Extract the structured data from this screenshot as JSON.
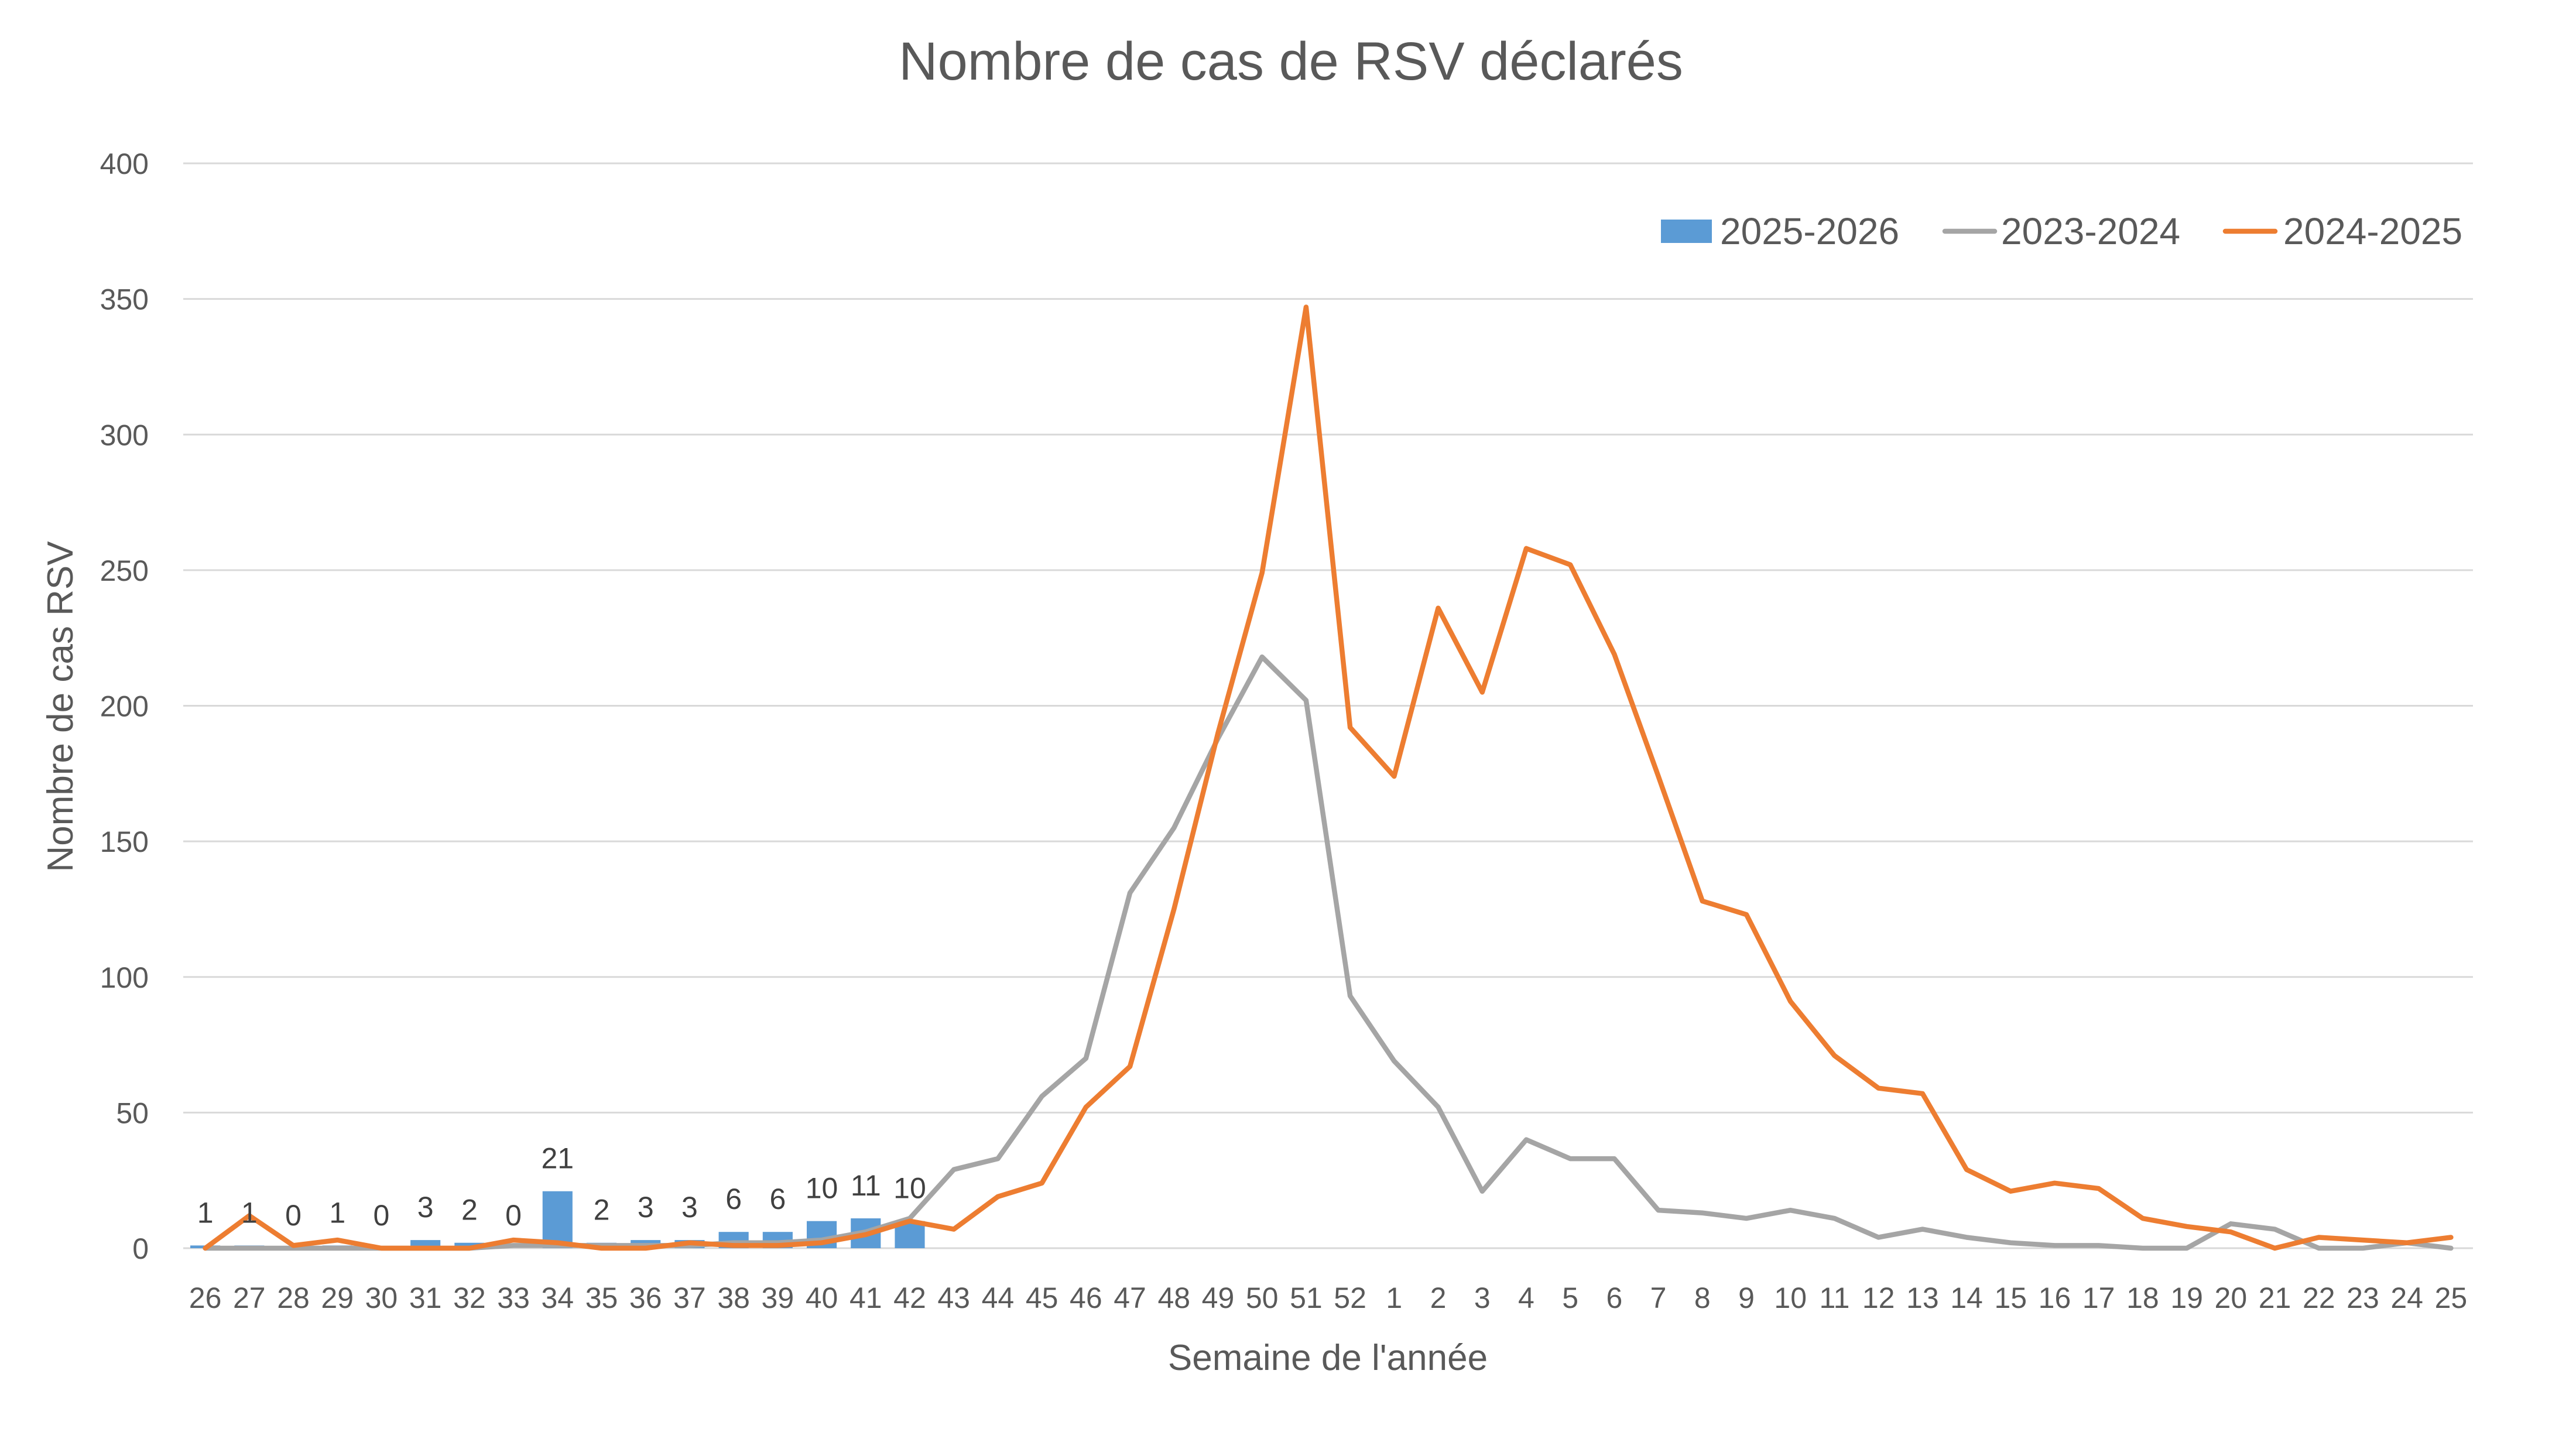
{
  "chart_data": {
    "type": "line",
    "title": "Nombre de cas de RSV déclarés",
    "xlabel": "Semaine de l'année",
    "ylabel": "Nombre de cas RSV",
    "ylim": [
      0,
      400
    ],
    "yticks": [
      0,
      50,
      100,
      150,
      200,
      250,
      300,
      350,
      400
    ],
    "grid": true,
    "legend": "top-right",
    "categories": [
      "26",
      "27",
      "28",
      "29",
      "30",
      "31",
      "32",
      "33",
      "34",
      "35",
      "36",
      "37",
      "38",
      "39",
      "40",
      "41",
      "42",
      "43",
      "44",
      "45",
      "46",
      "47",
      "48",
      "49",
      "50",
      "51",
      "52",
      "1",
      "2",
      "3",
      "4",
      "5",
      "6",
      "7",
      "8",
      "9",
      "10",
      "11",
      "12",
      "13",
      "14",
      "15",
      "16",
      "17",
      "18",
      "19",
      "20",
      "21",
      "22",
      "23",
      "24",
      "25"
    ],
    "series": [
      {
        "name": "2025-2026",
        "type": "bar",
        "color": "#5B9BD5",
        "data_labels": true,
        "values": [
          1,
          1,
          0,
          1,
          0,
          3,
          2,
          0,
          21,
          2,
          3,
          3,
          6,
          6,
          10,
          11,
          10,
          null,
          null,
          null,
          null,
          null,
          null,
          null,
          null,
          null,
          null,
          null,
          null,
          null,
          null,
          null,
          null,
          null,
          null,
          null,
          null,
          null,
          null,
          null,
          null,
          null,
          null,
          null,
          null,
          null,
          null,
          null,
          null,
          null,
          null,
          null
        ]
      },
      {
        "name": "2023-2024",
        "type": "line",
        "color": "#A5A5A5",
        "values": [
          0,
          0,
          0,
          0,
          0,
          0,
          0,
          1,
          1,
          1,
          1,
          1,
          2,
          2,
          3,
          6,
          11,
          29,
          33,
          56,
          70,
          131,
          155,
          188,
          218,
          202,
          93,
          69,
          52,
          21,
          40,
          33,
          33,
          14,
          13,
          11,
          14,
          11,
          4,
          7,
          4,
          2,
          1,
          1,
          0,
          0,
          9,
          7,
          0,
          0,
          2,
          0
        ]
      },
      {
        "name": "2024-2025",
        "type": "line",
        "color": "#ED7D31",
        "values": [
          0,
          12,
          1,
          3,
          0,
          0,
          0,
          3,
          2,
          0,
          0,
          2,
          1,
          1,
          2,
          5,
          10,
          7,
          19,
          24,
          52,
          67,
          125,
          190,
          249,
          347,
          192,
          174,
          236,
          205,
          258,
          252,
          219,
          174,
          128,
          123,
          91,
          71,
          59,
          57,
          29,
          21,
          24,
          22,
          11,
          8,
          6,
          0,
          4,
          3,
          2,
          4
        ]
      }
    ]
  }
}
